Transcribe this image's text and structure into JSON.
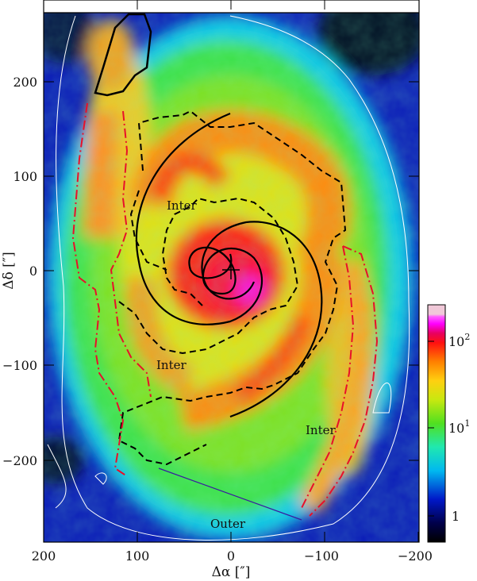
{
  "figure": {
    "x_axis_label": "Δα [″]",
    "y_axis_label": "Δδ [″]",
    "x_ticks": [
      "200",
      "100",
      "0",
      "−100",
      "−200"
    ],
    "y_ticks": [
      "200",
      "100",
      "0",
      "−100",
      "−200"
    ],
    "region_labels": {
      "inter_north": "Inter",
      "inter_east": "Inter",
      "inter_south": "Inter",
      "outer": "Outer"
    },
    "colorbar": {
      "ticks": [
        "10",
        "10",
        "1"
      ],
      "exponents": [
        "2",
        "1"
      ],
      "scale": "log"
    },
    "colors": {
      "arm_mask": "#000000",
      "outer_arm_mask": "#e8102a",
      "spiral_fit": "#000000",
      "contour": "#ffffff"
    }
  }
}
